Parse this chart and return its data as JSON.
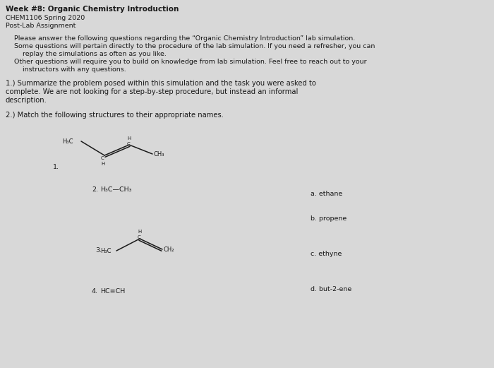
{
  "bg_color": "#d8d8d8",
  "title_bold": "Week #8: Organic Chemistry Introduction",
  "subtitle1": "CHEM1106 Spring 2020",
  "subtitle2": "Post-Lab Assignment",
  "para1_line1": "Please answer the following questions regarding the “Organic Chemistry Introduction” lab simulation.",
  "para1_line2": "Some questions will pertain directly to the procedure of the lab simulation. If you need a refresher, you can",
  "para1_line3": "    replay the simulations as often as you like.",
  "para1_line4": "Other questions will require you to build on knowledge from lab simulation. Feel free to reach out to your",
  "para1_line5": "    instructors with any questions.",
  "q1_line1": "1.) Summarize the problem posed within this simulation and the task you were asked to",
  "q1_line2": "complete. We are not looking for a step-by-step procedure, but instead an informal",
  "q1_line3": "description.",
  "q2_text": "2.) Match the following structures to their appropriate names.",
  "answer_a": "a. ethane",
  "answer_b": "b. propene",
  "answer_c": "c. ethyne",
  "answer_d": "d. but-2-ene",
  "text_color": "#1a1a1a",
  "line_color": "#1a1a1a",
  "fs_title": 7.5,
  "fs_body": 6.8,
  "fs_q": 7.2,
  "fs_struct": 6.0,
  "fs_struct_label": 6.8
}
